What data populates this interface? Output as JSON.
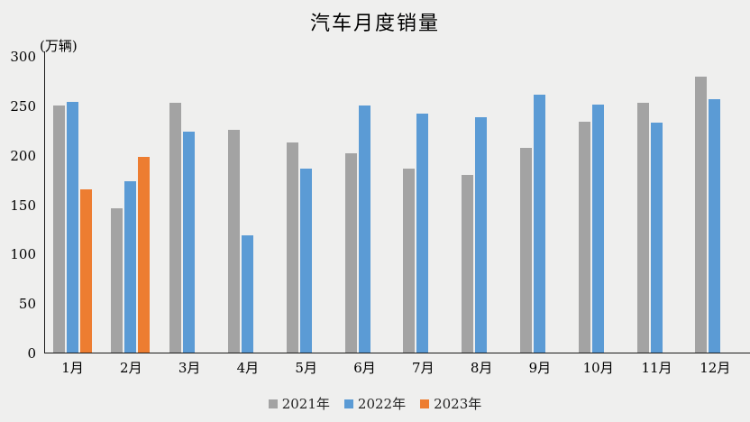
{
  "chart": {
    "title": "汽车月度销量",
    "unit_label": "(万辆)"
  },
  "colors": {
    "background": "#efefee",
    "axis": "#1a1a1a",
    "text": "#111111",
    "series_2021": "#a3a3a3",
    "series_2022": "#5b9bd5",
    "series_2023": "#ed7d31"
  },
  "chart_data": {
    "type": "bar",
    "title": "汽车月度销量",
    "ylabel": "(万辆)",
    "categories": [
      "1月",
      "2月",
      "3月",
      "4月",
      "5月",
      "6月",
      "7月",
      "8月",
      "9月",
      "10月",
      "11月",
      "12月"
    ],
    "series": [
      {
        "name": "2021年",
        "color": "#a3a3a3",
        "values": [
          250.3,
          145.5,
          252.6,
          225.2,
          212.8,
          201.5,
          186.4,
          179.9,
          206.7,
          233.3,
          252.2,
          278.6
        ]
      },
      {
        "name": "2022年",
        "color": "#5b9bd5",
        "values": [
          253.1,
          173.7,
          223.4,
          118.1,
          186.2,
          250.2,
          242.0,
          238.3,
          261.0,
          250.5,
          232.8,
          255.9
        ]
      },
      {
        "name": "2023年",
        "color": "#ed7d31",
        "values": [
          164.9,
          197.6,
          null,
          null,
          null,
          null,
          null,
          null,
          null,
          null,
          null,
          null
        ]
      }
    ],
    "ylim": [
      0,
      300
    ],
    "ytick_interval": 50,
    "yticks": [
      0,
      50,
      100,
      150,
      200,
      250,
      300
    ],
    "grid": false,
    "legend_position": "bottom",
    "legend": [
      "2021年",
      "2022年",
      "2023年"
    ]
  }
}
